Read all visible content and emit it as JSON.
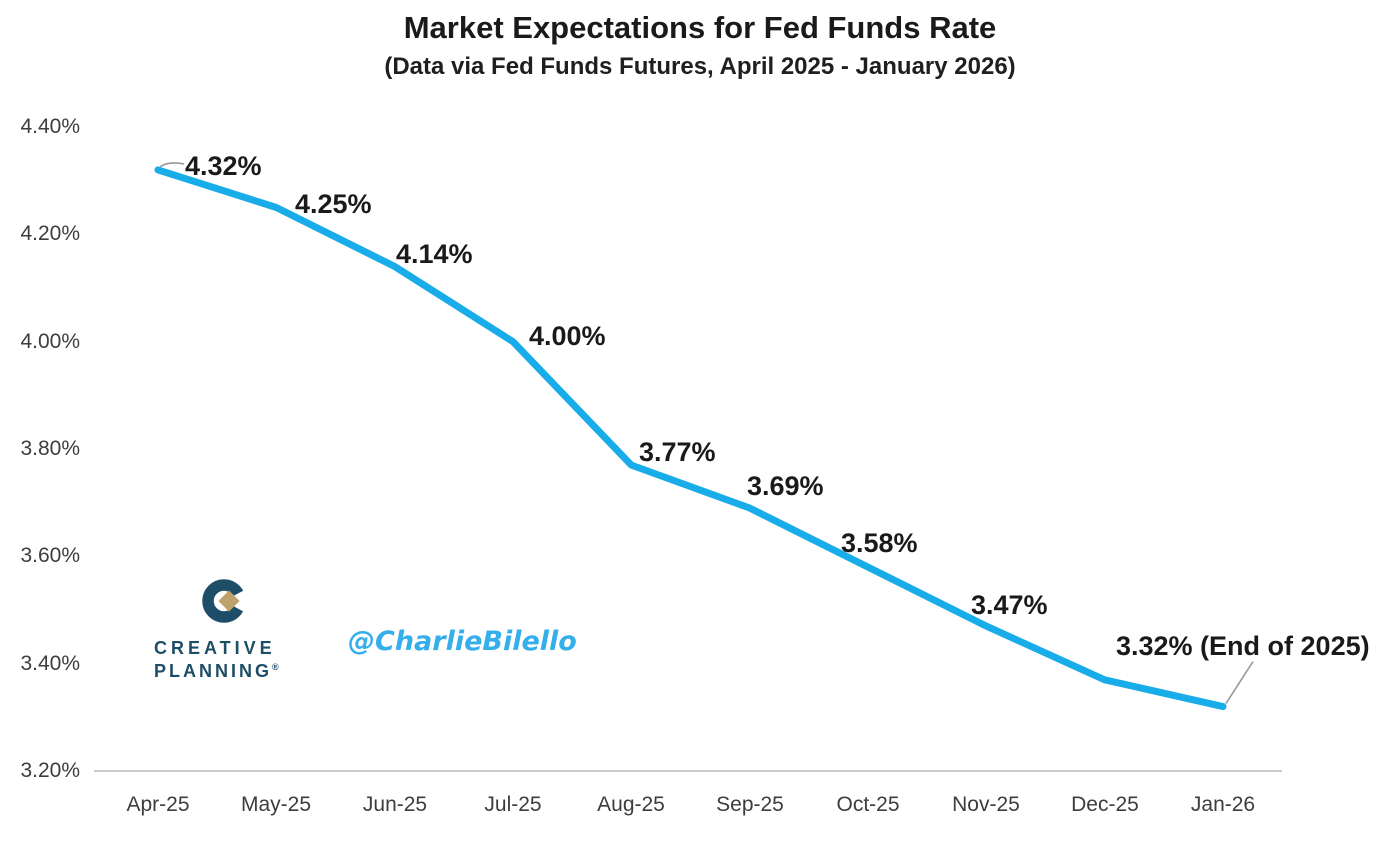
{
  "chart_data": {
    "type": "line",
    "title": "Market Expectations for Fed Funds Rate",
    "subtitle": "(Data via Fed Funds Futures, April 2025 - January 2026)",
    "categories": [
      "Apr-25",
      "May-25",
      "Jun-25",
      "Jul-25",
      "Aug-25",
      "Sep-25",
      "Oct-25",
      "Nov-25",
      "Dec-25",
      "Jan-26"
    ],
    "values": [
      4.32,
      4.25,
      4.14,
      4.0,
      3.77,
      3.69,
      3.58,
      3.47,
      3.37,
      3.32
    ],
    "point_labels": [
      "4.32%",
      "4.25%",
      "4.14%",
      "4.00%",
      "3.77%",
      "3.69%",
      "3.58%",
      "3.47%",
      "",
      "3.32% (End of 2025)"
    ],
    "yticks": [
      "4.40%",
      "4.20%",
      "4.00%",
      "3.80%",
      "3.60%",
      "3.40%",
      "3.20%"
    ],
    "ylim": [
      3.2,
      4.4
    ],
    "xlabel": "",
    "ylabel": "",
    "grid": false,
    "legend": "none",
    "line_color": "#18ACE8",
    "leader_line_color": "#999999",
    "axis_line_color": "#cccccc"
  },
  "branding": {
    "logo_text_line1": "CREATIVE",
    "logo_text_line2": "PLANNING",
    "logo_registered_mark": "®",
    "logo_color": "#1E4D67",
    "logo_diamond_color": "#BFA26B",
    "watermark": "@CharlieBilello",
    "watermark_color": "#35AEEC"
  }
}
